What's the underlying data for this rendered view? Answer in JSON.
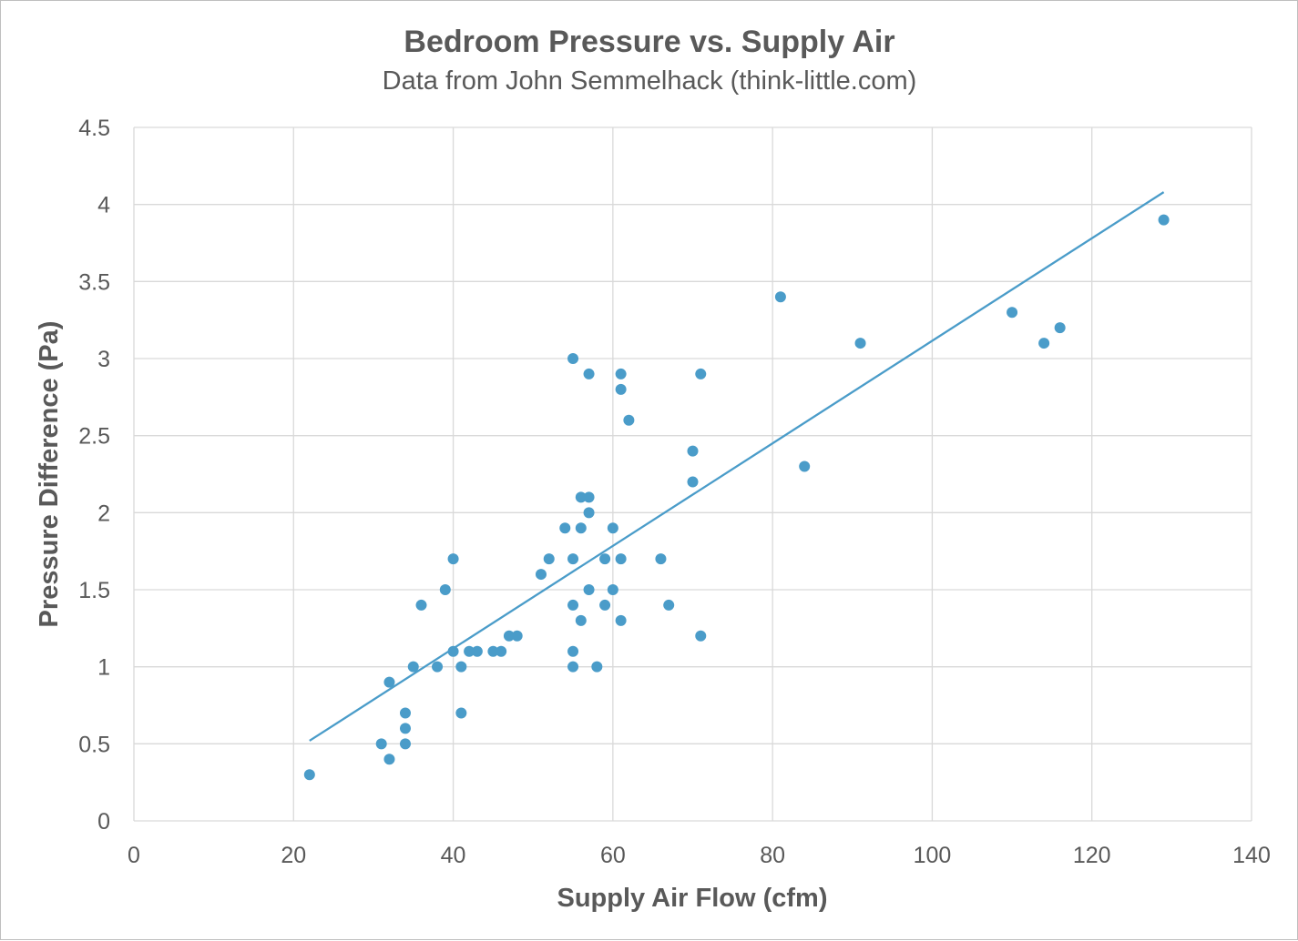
{
  "colors": {
    "series": "#4a9cc9",
    "trendline": "#4a9cc9",
    "text": "#595959",
    "grid": "#d9d9d9"
  },
  "chart_data": {
    "type": "scatter",
    "title": "Bedroom Pressure vs. Supply Air",
    "subtitle": "Data from John Semmelhack (think-little.com)",
    "xlabel": "Supply Air Flow (cfm)",
    "ylabel": "Pressure Difference (Pa)",
    "xlim": [
      0,
      140
    ],
    "ylim": [
      0,
      4.5
    ],
    "xticks": [
      "0",
      "20",
      "40",
      "60",
      "80",
      "100",
      "120",
      "140"
    ],
    "yticks": [
      "0",
      "0.5",
      "1",
      "1.5",
      "2",
      "2.5",
      "3",
      "3.5",
      "4",
      "4.5"
    ],
    "grid": true,
    "legend": "none",
    "series": [
      {
        "points": [
          [
            22,
            0.3
          ],
          [
            31,
            0.5
          ],
          [
            32,
            0.4
          ],
          [
            32,
            0.9
          ],
          [
            34,
            0.7
          ],
          [
            34,
            0.6
          ],
          [
            34,
            0.5
          ],
          [
            35,
            1.0
          ],
          [
            36,
            1.4
          ],
          [
            38,
            1.0
          ],
          [
            39,
            1.5
          ],
          [
            40,
            1.7
          ],
          [
            40,
            1.1
          ],
          [
            41,
            1.0
          ],
          [
            41,
            0.7
          ],
          [
            42,
            1.1
          ],
          [
            43,
            1.1
          ],
          [
            45,
            1.1
          ],
          [
            46,
            1.1
          ],
          [
            47,
            1.2
          ],
          [
            48,
            1.2
          ],
          [
            51,
            1.6
          ],
          [
            52,
            1.7
          ],
          [
            54,
            1.9
          ],
          [
            55,
            3.0
          ],
          [
            55,
            1.7
          ],
          [
            55,
            1.4
          ],
          [
            55,
            1.1
          ],
          [
            55,
            1.0
          ],
          [
            56,
            2.1
          ],
          [
            56,
            1.9
          ],
          [
            56,
            1.3
          ],
          [
            57,
            2.9
          ],
          [
            57,
            2.1
          ],
          [
            57,
            2.0
          ],
          [
            57,
            1.5
          ],
          [
            58,
            1.0
          ],
          [
            59,
            1.7
          ],
          [
            59,
            1.4
          ],
          [
            60,
            1.9
          ],
          [
            60,
            1.5
          ],
          [
            61,
            2.9
          ],
          [
            61,
            2.8
          ],
          [
            61,
            1.7
          ],
          [
            61,
            1.3
          ],
          [
            62,
            2.6
          ],
          [
            66,
            1.7
          ],
          [
            67,
            1.4
          ],
          [
            70,
            2.4
          ],
          [
            70,
            2.2
          ],
          [
            71,
            2.9
          ],
          [
            71,
            1.2
          ],
          [
            81,
            3.4
          ],
          [
            84,
            2.3
          ],
          [
            91,
            3.1
          ],
          [
            110,
            3.3
          ],
          [
            114,
            3.1
          ],
          [
            116,
            3.2
          ],
          [
            129,
            3.9
          ]
        ]
      }
    ],
    "trendline": {
      "type": "linear",
      "x": [
        22,
        129
      ],
      "y": [
        0.52,
        4.08
      ]
    }
  }
}
